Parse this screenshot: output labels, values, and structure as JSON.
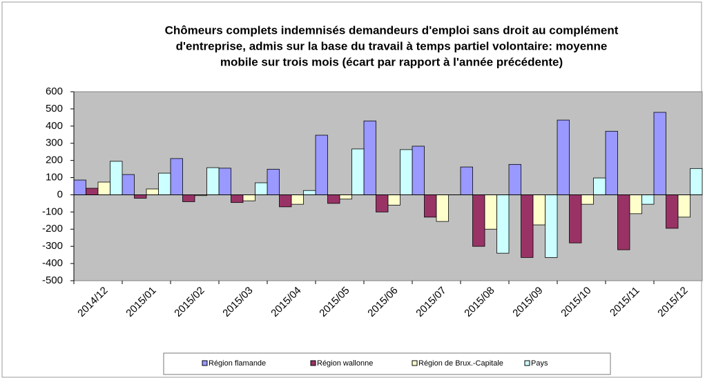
{
  "chart_data": {
    "type": "bar",
    "title": [
      "Chômeurs complets indemnisés demandeurs d'emploi sans droit au complément",
      "d'entreprise, admis sur la base du travail à temps partiel volontaire: moyenne",
      "mobile sur trois mois (écart par rapport à l'année précédente)"
    ],
    "categories": [
      "2014/12",
      "2015/01",
      "2015/02",
      "2015/03",
      "2015/04",
      "2015/05",
      "2015/06",
      "2015/07",
      "2015/08",
      "2015/09",
      "2015/10",
      "2015/11",
      "2015/12"
    ],
    "series": [
      {
        "name": "Région flamande",
        "color": "#9999ff",
        "values": [
          86,
          118,
          211,
          155,
          149,
          347,
          430,
          283,
          162,
          177,
          435,
          370,
          480
        ]
      },
      {
        "name": "Région wallonne",
        "color": "#993366",
        "values": [
          38,
          -20,
          -40,
          -45,
          -70,
          -50,
          -100,
          -130,
          -300,
          -365,
          -280,
          -320,
          -195
        ]
      },
      {
        "name": "Région de Brux.-Capitale",
        "color": "#ffffcc",
        "values": [
          74,
          34,
          -5,
          -35,
          -55,
          -25,
          -60,
          -155,
          -200,
          -175,
          -55,
          -110,
          -130
        ]
      },
      {
        "name": "Pays",
        "color": "#ccffff",
        "values": [
          195,
          126,
          158,
          70,
          25,
          267,
          263,
          0,
          -340,
          -365,
          98,
          -55,
          153
        ]
      }
    ],
    "ylim": [
      -500,
      600
    ],
    "yticks": [
      -500,
      -400,
      -300,
      -200,
      -100,
      0,
      100,
      200,
      300,
      400,
      500,
      600
    ],
    "plot_background": "#c0c0c0",
    "legend": "bottom"
  }
}
